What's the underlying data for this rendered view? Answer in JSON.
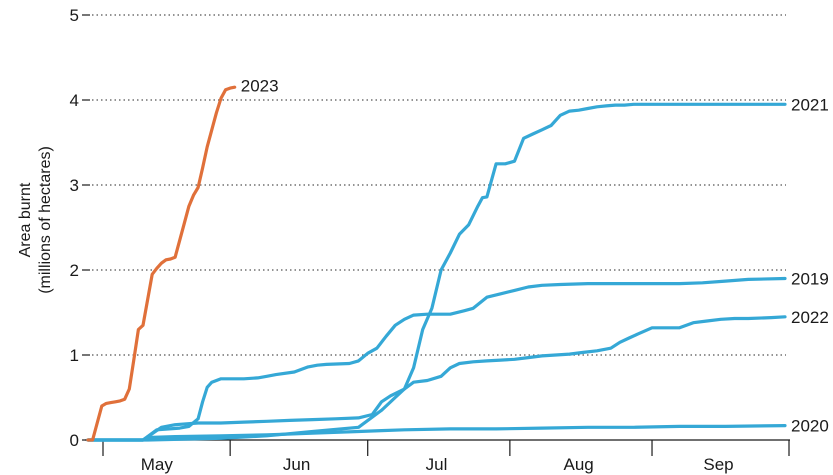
{
  "chart_data": {
    "type": "line",
    "title": "",
    "xlabel": "",
    "ylabel": [
      "Area burnt",
      "(millions of hectares)"
    ],
    "x_unit": "day of year",
    "xlim": [
      121,
      273
    ],
    "ylim": [
      0,
      5
    ],
    "yticks": [
      0,
      1,
      2,
      3,
      4,
      5
    ],
    "xticks": [
      {
        "label": "May",
        "center": 136
      },
      {
        "label": "Jun",
        "center": 166.5
      },
      {
        "label": "Jul",
        "center": 197
      },
      {
        "label": "Aug",
        "center": 228
      },
      {
        "label": "Sep",
        "center": 258.5
      }
    ],
    "month_boundaries": [
      152,
      182,
      213,
      244
    ],
    "grid": {
      "horizontal": true,
      "style": "dotted"
    },
    "legend": "direct labels at line ends",
    "series": [
      {
        "name": "2023",
        "color": "#e0703a",
        "x": [
          121,
          122,
          123,
          124,
          125,
          126,
          127,
          128,
          129,
          130,
          131,
          132,
          133,
          134,
          135,
          136,
          137,
          138,
          139,
          140,
          141,
          142,
          143,
          144,
          145,
          146,
          147,
          148,
          149,
          150,
          151,
          152,
          153
        ],
        "values": [
          0.0,
          0.0,
          0.2,
          0.4,
          0.43,
          0.44,
          0.45,
          0.46,
          0.48,
          0.6,
          0.95,
          1.3,
          1.35,
          1.65,
          1.95,
          2.02,
          2.08,
          2.12,
          2.13,
          2.15,
          2.35,
          2.55,
          2.75,
          2.88,
          2.97,
          3.2,
          3.45,
          3.65,
          3.85,
          4.02,
          4.12,
          4.14,
          4.15
        ]
      },
      {
        "name": "2021",
        "color": "#35a8d6",
        "x": [
          121,
          134,
          150,
          160,
          170,
          180,
          185,
          188,
          190,
          192,
          194,
          196,
          198,
          200,
          202,
          204,
          206,
          207,
          208,
          210,
          212,
          214,
          216,
          218,
          220,
          222,
          224,
          226,
          228,
          230,
          232,
          234,
          236,
          238,
          240,
          245,
          250,
          260,
          273
        ],
        "values": [
          0.0,
          0.0,
          0.02,
          0.05,
          0.1,
          0.15,
          0.35,
          0.5,
          0.6,
          0.85,
          1.3,
          1.55,
          2.0,
          2.2,
          2.42,
          2.53,
          2.75,
          2.85,
          2.86,
          3.25,
          3.25,
          3.28,
          3.55,
          3.6,
          3.65,
          3.7,
          3.82,
          3.87,
          3.88,
          3.9,
          3.92,
          3.93,
          3.94,
          3.94,
          3.95,
          3.95,
          3.95,
          3.95,
          3.95
        ]
      },
      {
        "name": "2019",
        "color": "#35a8d6",
        "x": [
          121,
          133,
          136,
          141,
          143,
          145,
          146,
          147,
          148,
          150,
          155,
          158,
          160,
          162,
          166,
          169,
          171,
          173,
          178,
          180,
          182,
          184,
          186,
          188,
          190,
          192,
          195,
          198,
          200,
          203,
          205,
          208,
          211,
          214,
          217,
          220,
          224,
          230,
          240,
          250,
          255,
          260,
          265,
          273
        ],
        "values": [
          0.0,
          0.0,
          0.12,
          0.14,
          0.16,
          0.25,
          0.45,
          0.62,
          0.68,
          0.72,
          0.72,
          0.73,
          0.75,
          0.77,
          0.8,
          0.86,
          0.88,
          0.89,
          0.9,
          0.93,
          1.02,
          1.08,
          1.22,
          1.35,
          1.42,
          1.47,
          1.48,
          1.48,
          1.48,
          1.52,
          1.55,
          1.68,
          1.72,
          1.76,
          1.8,
          1.82,
          1.83,
          1.84,
          1.84,
          1.84,
          1.85,
          1.87,
          1.89,
          1.9
        ]
      },
      {
        "name": "2022",
        "color": "#35a8d6",
        "x": [
          121,
          133,
          137,
          140,
          145,
          150,
          155,
          160,
          165,
          170,
          175,
          180,
          183,
          185,
          187,
          190,
          192,
          195,
          198,
          200,
          202,
          205,
          208,
          211,
          214,
          217,
          220,
          223,
          226,
          229,
          232,
          235,
          237,
          239,
          241,
          244,
          247,
          250,
          253,
          256,
          259,
          262,
          265,
          270,
          273
        ],
        "values": [
          0.0,
          0.0,
          0.15,
          0.18,
          0.2,
          0.2,
          0.21,
          0.22,
          0.23,
          0.24,
          0.25,
          0.26,
          0.3,
          0.45,
          0.52,
          0.6,
          0.68,
          0.7,
          0.75,
          0.85,
          0.9,
          0.92,
          0.93,
          0.94,
          0.95,
          0.97,
          0.99,
          1.0,
          1.01,
          1.03,
          1.05,
          1.08,
          1.15,
          1.2,
          1.25,
          1.32,
          1.32,
          1.32,
          1.38,
          1.4,
          1.42,
          1.43,
          1.43,
          1.44,
          1.45
        ]
      },
      {
        "name": "2020",
        "color": "#35a8d6",
        "x": [
          121,
          133,
          135,
          140,
          150,
          160,
          170,
          180,
          185,
          190,
          200,
          210,
          220,
          230,
          240,
          250,
          260,
          273
        ],
        "values": [
          0.0,
          0.0,
          0.03,
          0.04,
          0.05,
          0.06,
          0.08,
          0.1,
          0.11,
          0.12,
          0.13,
          0.13,
          0.14,
          0.15,
          0.15,
          0.16,
          0.16,
          0.17
        ]
      }
    ]
  }
}
